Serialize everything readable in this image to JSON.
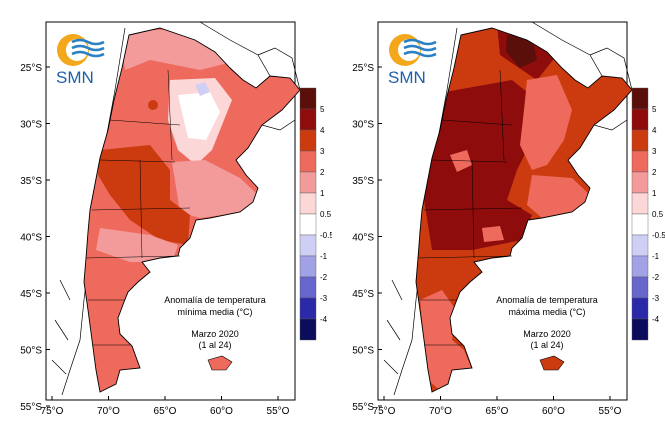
{
  "org": {
    "name": "SMN",
    "logo": "smn-logo"
  },
  "maps": [
    {
      "id": "min",
      "title_line1": "Anomalía de temperatura",
      "title_line2": "mínima media (°C)",
      "period_line1": "Marzo 2020",
      "period_line2": "(1 al 24)"
    },
    {
      "id": "max",
      "title_line1": "Anomalía de temperatura",
      "title_line2": "máxima media (°C)",
      "period_line1": "Marzo 2020",
      "period_line2": "(1 al 24)"
    }
  ],
  "lat_labels": [
    "25°S",
    "30°S",
    "35°S",
    "40°S",
    "45°S",
    "50°S",
    "55°S"
  ],
  "lon_labels": [
    "75°O",
    "70°O",
    "65°O",
    "60°O",
    "55°O"
  ],
  "legend": {
    "labels": [
      "5",
      "4",
      "3",
      "2",
      "1",
      "0.5",
      "-0.5",
      "-1",
      "-2",
      "-3",
      "-4"
    ],
    "colors": [
      "#5a0f0a",
      "#8e0c0c",
      "#cc3b10",
      "#ee6a5c",
      "#f39b9b",
      "#fbd7d7",
      "#ffffff",
      "#cfcff5",
      "#a1a1e6",
      "#6666cc",
      "#2a2aa8",
      "#0c0c5c"
    ]
  }
}
